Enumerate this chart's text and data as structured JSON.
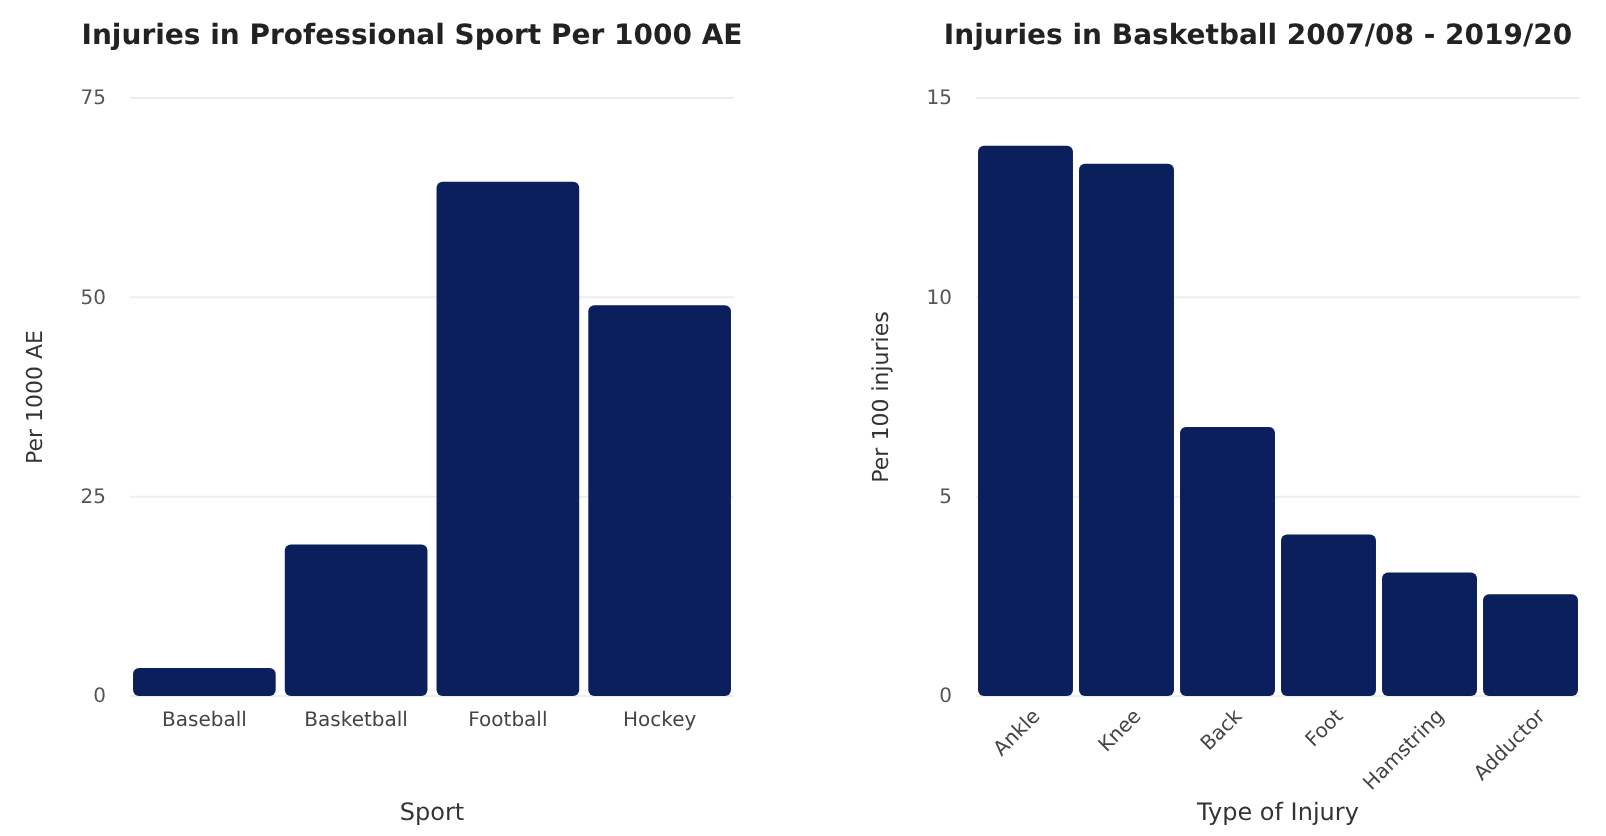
{
  "chart_data": [
    {
      "type": "bar",
      "title": "Injuries in Professional Sport Per 1000 AE",
      "xlabel": "Sport",
      "ylabel": "Per 1000 AE",
      "categories": [
        "Baseball",
        "Basketball",
        "Football",
        "Hockey"
      ],
      "values": [
        3.5,
        19,
        64.5,
        49
      ],
      "color": "#0a1f5c",
      "ylim": [
        0,
        75
      ],
      "yticks": [
        0,
        25,
        50,
        75
      ],
      "grid": "y"
    },
    {
      "type": "bar",
      "title": "Injuries in Basketball 2007/08 - 2019/20",
      "xlabel": "Type of Injury",
      "ylabel": "Per 100 injuries",
      "categories": [
        "Ankle",
        "Knee",
        "Back",
        "Foot",
        "Hamstring",
        "Adductor"
      ],
      "values": [
        13.8,
        13.35,
        6.75,
        4.05,
        3.1,
        2.55
      ],
      "color": "#0a1f5c",
      "ylim": [
        0,
        15
      ],
      "yticks": [
        0,
        5,
        10,
        15
      ],
      "grid": "y"
    }
  ]
}
